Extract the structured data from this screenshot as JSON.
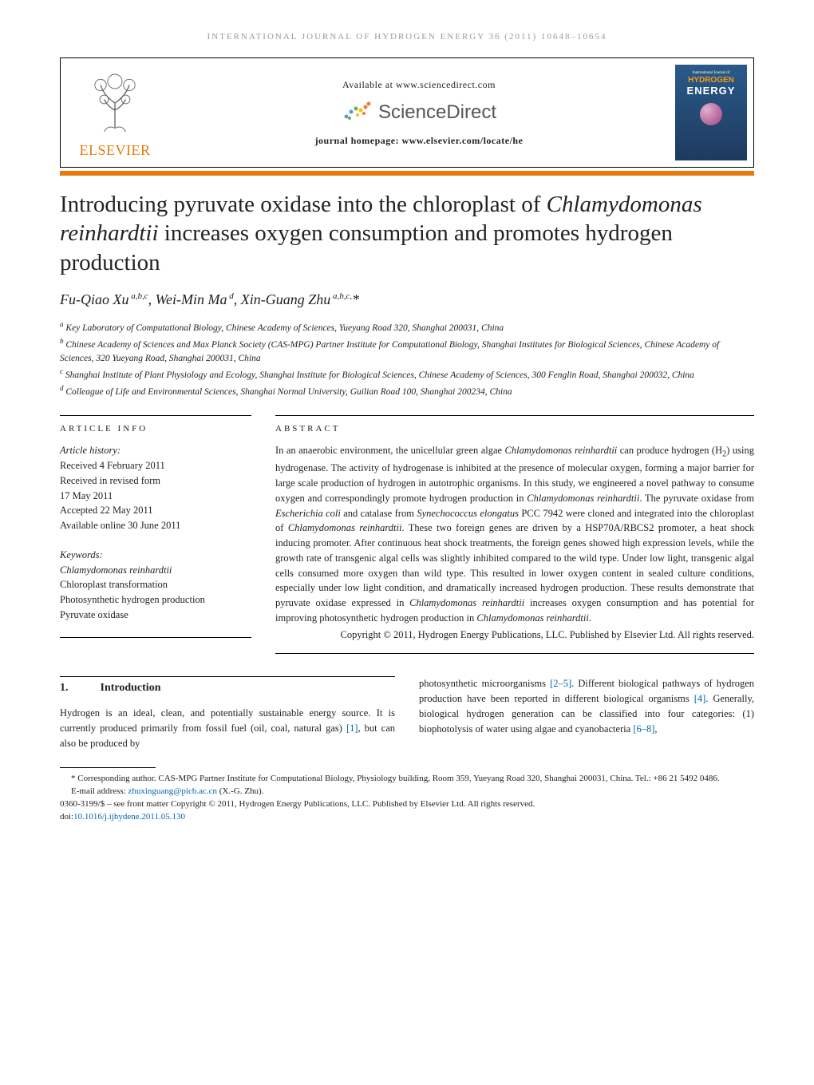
{
  "running_header": "INTERNATIONAL JOURNAL OF HYDROGEN ENERGY 36 (2011) 10648–10654",
  "masthead": {
    "elsevier_label": "ELSEVIER",
    "available_at": "Available at www.sciencedirect.com",
    "sciencedirect_label": "ScienceDirect",
    "journal_homepage": "journal homepage: www.elsevier.com/locate/he",
    "cover": {
      "top_label": "International Journal of",
      "hydrogen": "HYDROGEN",
      "energy": "ENERGY"
    }
  },
  "title_parts": {
    "pre": "Introducing pyruvate oxidase into the chloroplast of ",
    "italic": "Chlamydomonas reinhardtii",
    "post": " increases oxygen consumption and promotes hydrogen production"
  },
  "authors_html": "Fu-Qiao Xu<sup> a,b,c</sup>, Wei-Min Ma<sup> d</sup>, Xin-Guang Zhu<sup> a,b,c,</sup>*",
  "affiliations": [
    "<sup>a</sup> Key Laboratory of Computational Biology, Chinese Academy of Sciences, Yueyang Road 320, Shanghai 200031, China",
    "<sup>b</sup> Chinese Academy of Sciences and Max Planck Society (CAS-MPG) Partner Institute for Computational Biology, Shanghai Institutes for Biological Sciences, Chinese Academy of Sciences, 320 Yueyang Road, Shanghai 200031, China",
    "<sup>c</sup> Shanghai Institute of Plant Physiology and Ecology, Shanghai Institute for Biological Sciences, Chinese Academy of Sciences, 300 Fenglin Road, Shanghai 200032, China",
    "<sup>d</sup> Colleague of Life and Environmental Sciences, Shanghai Normal University, Guilian Road 100, Shanghai 200234, China"
  ],
  "info": {
    "heading": "ARTICLE INFO",
    "history_label": "Article history:",
    "history": [
      "Received 4 February 2011",
      "Received in revised form",
      "17 May 2011",
      "Accepted 22 May 2011",
      "Available online 30 June 2011"
    ],
    "keywords_label": "Keywords:",
    "keywords": [
      {
        "text": "Chlamydomonas reinhardtii",
        "italic": true
      },
      {
        "text": "Chloroplast transformation",
        "italic": false
      },
      {
        "text": "Photosynthetic hydrogen production",
        "italic": false
      },
      {
        "text": "Pyruvate oxidase",
        "italic": false
      }
    ]
  },
  "abstract": {
    "heading": "ABSTRACT",
    "text_html": "In an anaerobic environment, the unicellular green algae <span class=\"italic\">Chlamydomonas reinhardtii</span> can produce hydrogen (H<sub>2</sub>) using hydrogenase. The activity of hydrogenase is inhibited at the presence of molecular oxygen, forming a major barrier for large scale production of hydrogen in autotrophic organisms. In this study, we engineered a novel pathway to consume oxygen and correspondingly promote hydrogen production in <span class=\"italic\">Chlamydomonas reinhardtii</span>. The pyruvate oxidase from <span class=\"italic\">Escherichia coli</span> and catalase from <span class=\"italic\">Synechococcus elongatus</span> PCC 7942 were cloned and integrated into the chloroplast of <span class=\"italic\">Chlamydomonas reinhardtii</span>. These two foreign genes are driven by a HSP70A/RBCS2 promoter, a heat shock inducing promoter. After continuous heat shock treatments, the foreign genes showed high expression levels, while the growth rate of transgenic algal cells was slightly inhibited compared to the wild type. Under low light, transgenic algal cells consumed more oxygen than wild type. This resulted in lower oxygen content in sealed culture conditions, especially under low light condition, and dramatically increased hydrogen production. These results demonstrate that pyruvate oxidase expressed in <span class=\"italic\">Chlamydomonas reinhardtii</span> increases oxygen consumption and has potential for improving photosynthetic hydrogen production in <span class=\"italic\">Chlamydomonas reinhardtii</span>.",
    "copyright": "Copyright © 2011, Hydrogen Energy Publications, LLC. Published by Elsevier Ltd. All rights reserved."
  },
  "section1": {
    "number": "1.",
    "title": "Introduction",
    "left_html": "Hydrogen is an ideal, clean, and potentially sustainable energy source. It is currently produced primarily from fossil fuel (oil, coal, natural gas) <a href=\"#\">[1]</a>, but can also be produced by",
    "right_html": "photosynthetic microorganisms <a href=\"#\">[2–5]</a>. Different biological pathways of hydrogen production have been reported in different biological organisms <a href=\"#\">[4]</a>. Generally, biological hydrogen generation can be classified into four categories: (1) biophotolysis of water using algae and cyanobacteria <a href=\"#\">[6–8]</a>,"
  },
  "footnote": {
    "corresponding_html": "* Corresponding author. CAS-MPG Partner Institute for Computational Biology, Physiology building, Room 359, Yueyang Road 320, Shanghai 200031, China. Tel.: +86 21 5492 0486.",
    "email_label": "E-mail address: ",
    "email": "zhuxinguang@picb.ac.cn",
    "email_suffix": " (X.-G. Zhu).",
    "issn_line": "0360-3199/$ – see front matter Copyright © 2011, Hydrogen Energy Publications, LLC. Published by Elsevier Ltd. All rights reserved.",
    "doi_label": "doi:",
    "doi": "10.1016/j.ijhydene.2011.05.130"
  }
}
